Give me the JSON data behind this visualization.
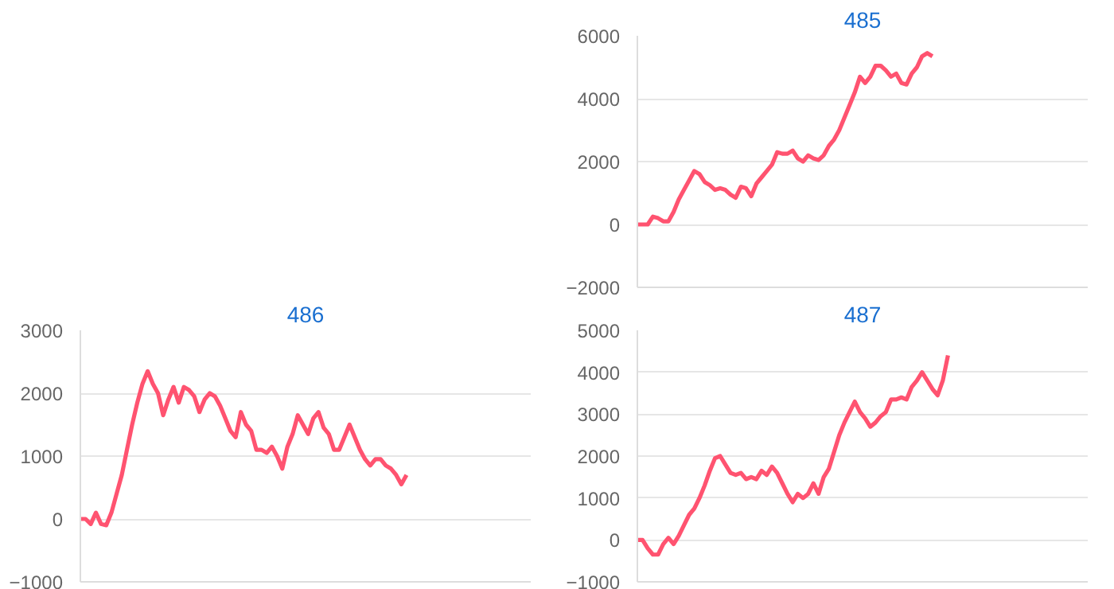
{
  "chart_data": [
    {
      "type": "line",
      "title": "485",
      "tick_labels": "y",
      "grid": "y",
      "ylim": [
        -2000,
        6000
      ],
      "yticks": [
        -2000,
        0,
        2000,
        4000,
        6000
      ],
      "categories": [
        null,
        null,
        null,
        null,
        null,
        null,
        null,
        null,
        null,
        null,
        null,
        null,
        null,
        null,
        null,
        null,
        null,
        null,
        null,
        null,
        null,
        null,
        null,
        null,
        null,
        null,
        null,
        null,
        null,
        null,
        null,
        null,
        null,
        null,
        null,
        null,
        null,
        null,
        null,
        null,
        null,
        null,
        null,
        null,
        null,
        null,
        null,
        null,
        null,
        null,
        null,
        null,
        null,
        null,
        null,
        null,
        null,
        null,
        null,
        null,
        null,
        null,
        null,
        null,
        null,
        null,
        null,
        null,
        null,
        null,
        null,
        null,
        null,
        null,
        null,
        null,
        null,
        null,
        null,
        null,
        null,
        null,
        null,
        null,
        null,
        null,
        null,
        null
      ],
      "series": [
        {
          "color": "#ff5370",
          "values": [
            0,
            0,
            0,
            250,
            200,
            100,
            100,
            400,
            800,
            1100,
            1400,
            1700,
            1600,
            1350,
            1250,
            1100,
            1150,
            1100,
            950,
            850,
            1200,
            1150,
            900,
            1300,
            1500,
            1700,
            1900,
            2300,
            2250,
            2250,
            2350,
            2100,
            2000,
            2200,
            2100,
            2050,
            2200,
            2500,
            2700,
            3000,
            3400,
            3800,
            4200,
            4700,
            4500,
            4700,
            5050,
            5050,
            4900,
            4700,
            4800,
            4500,
            4450,
            4800,
            5000,
            5350,
            5450,
            5350,
            null,
            null,
            null,
            null,
            null,
            null,
            null,
            null,
            null,
            null,
            null,
            null,
            null,
            null,
            null,
            null,
            null,
            null,
            null,
            null,
            null,
            null,
            null,
            null,
            null,
            null,
            null,
            null,
            null,
            null
          ]
        }
      ]
    },
    {
      "type": "line",
      "title": "486",
      "tick_labels": "y",
      "grid": "y",
      "ylim": [
        -1000,
        3000
      ],
      "yticks": [
        -1000,
        0,
        1000,
        2000,
        3000
      ],
      "categories": [
        null,
        null,
        null,
        null,
        null,
        null,
        null,
        null,
        null,
        null,
        null,
        null,
        null,
        null,
        null,
        null,
        null,
        null,
        null,
        null,
        null,
        null,
        null,
        null,
        null,
        null,
        null,
        null,
        null,
        null,
        null,
        null,
        null,
        null,
        null,
        null,
        null,
        null,
        null,
        null,
        null,
        null,
        null,
        null,
        null,
        null,
        null,
        null,
        null,
        null,
        null,
        null,
        null,
        null,
        null,
        null,
        null,
        null,
        null,
        null,
        null,
        null,
        null,
        null,
        null,
        null,
        null,
        null,
        null,
        null,
        null,
        null,
        null,
        null,
        null,
        null,
        null,
        null,
        null,
        null,
        null,
        null,
        null,
        null,
        null,
        null,
        null,
        null
      ],
      "series": [
        {
          "color": "#ff5370",
          "values": [
            0,
            0,
            -80,
            100,
            -80,
            -100,
            100,
            400,
            700,
            1100,
            1500,
            1850,
            2150,
            2350,
            2150,
            2000,
            1650,
            1900,
            2100,
            1850,
            2100,
            2050,
            1950,
            1700,
            1900,
            2000,
            1950,
            1800,
            1600,
            1400,
            1300,
            1700,
            1500,
            1400,
            1100,
            1100,
            1050,
            1150,
            1000,
            800,
            1150,
            1350,
            1650,
            1500,
            1350,
            1600,
            1700,
            1450,
            1350,
            1100,
            1100,
            1300,
            1500,
            1300,
            1100,
            950,
            850,
            950,
            950,
            850,
            800,
            700,
            550,
            700,
            null,
            null,
            null,
            null,
            null,
            null,
            null,
            null,
            null,
            null,
            null,
            null,
            null,
            null,
            null,
            null,
            null,
            null,
            null,
            null,
            null,
            null,
            null,
            null
          ]
        }
      ]
    },
    {
      "type": "line",
      "title": "487",
      "tick_labels": "y",
      "grid": "y",
      "ylim": [
        -1000,
        5000
      ],
      "yticks": [
        -1000,
        0,
        1000,
        2000,
        3000,
        4000,
        5000
      ],
      "categories": [
        null,
        null,
        null,
        null,
        null,
        null,
        null,
        null,
        null,
        null,
        null,
        null,
        null,
        null,
        null,
        null,
        null,
        null,
        null,
        null,
        null,
        null,
        null,
        null,
        null,
        null,
        null,
        null,
        null,
        null,
        null,
        null,
        null,
        null,
        null,
        null,
        null,
        null,
        null,
        null,
        null,
        null,
        null,
        null,
        null,
        null,
        null,
        null,
        null,
        null,
        null,
        null,
        null,
        null,
        null,
        null,
        null,
        null,
        null,
        null,
        null,
        null,
        null,
        null,
        null,
        null,
        null,
        null,
        null,
        null,
        null,
        null,
        null,
        null,
        null,
        null,
        null,
        null,
        null,
        null,
        null,
        null,
        null,
        null,
        null,
        null,
        null,
        null
      ],
      "series": [
        {
          "color": "#ff5370",
          "values": [
            0,
            0,
            -200,
            -350,
            -350,
            -100,
            50,
            -100,
            100,
            350,
            600,
            750,
            1000,
            1300,
            1650,
            1950,
            2000,
            1800,
            1600,
            1550,
            1600,
            1450,
            1500,
            1450,
            1650,
            1550,
            1750,
            1600,
            1350,
            1100,
            900,
            1100,
            1000,
            1100,
            1350,
            1100,
            1500,
            1700,
            2100,
            2500,
            2800,
            3050,
            3300,
            3050,
            2900,
            2700,
            2800,
            2950,
            3050,
            3350,
            3350,
            3400,
            3350,
            3650,
            3800,
            4000,
            3800,
            3600,
            3450,
            3800,
            4400,
            null,
            null,
            null,
            null,
            null,
            null,
            null,
            null,
            null,
            null,
            null,
            null,
            null,
            null,
            null,
            null,
            null,
            null,
            null,
            null,
            null,
            null,
            null,
            null,
            null,
            null,
            null
          ]
        }
      ]
    }
  ]
}
